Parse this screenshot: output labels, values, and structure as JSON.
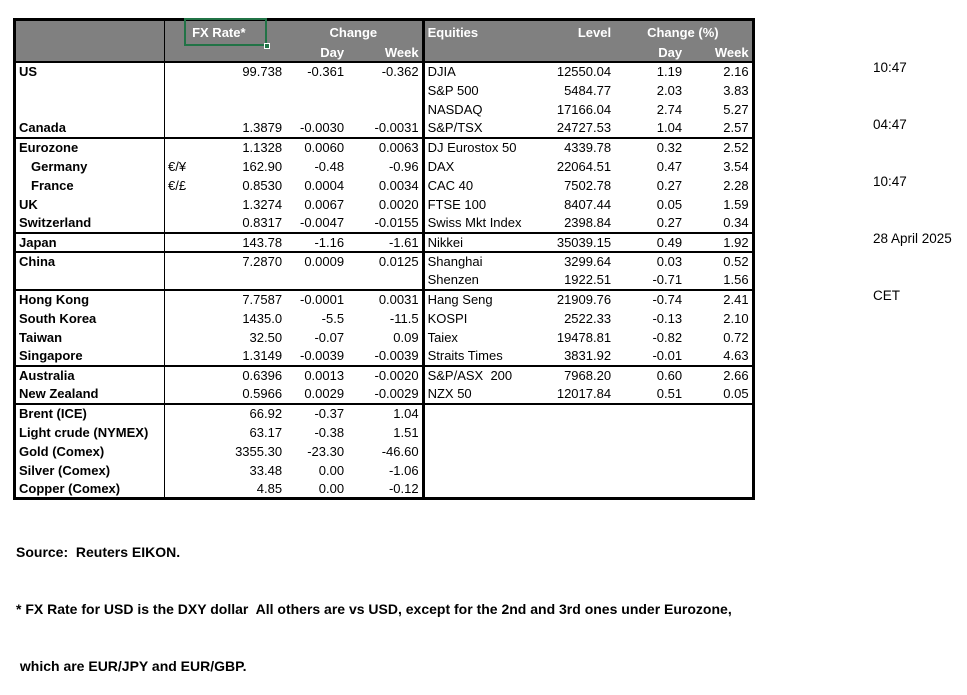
{
  "page": {
    "timestamps": [
      "10:47",
      "04:47",
      "10:47",
      "28 April 2025",
      "CET"
    ]
  },
  "colors": {
    "header_bg": "#808080",
    "header_text": "#ffffff",
    "selection_green": "#217346",
    "border": "#000000",
    "text": "#000000",
    "background": "#ffffff"
  },
  "table": {
    "fx_header": {
      "rate": "FX Rate*",
      "change": "Change",
      "day": "Day",
      "week": "Week"
    },
    "eq_header": {
      "title": "Equities",
      "level": "Level",
      "change": "Change (%)",
      "day": "Day",
      "week": "Week"
    },
    "rows": [
      {
        "label": "US",
        "pair": "",
        "rate": "99.738",
        "day": "-0.361",
        "week": "-0.362",
        "eq": "DJIA",
        "level": "12550.04",
        "eday": "1.19",
        "eweek": "2.16"
      },
      {
        "label": "",
        "pair": "",
        "rate": "",
        "day": "",
        "week": "",
        "eq": "S&P 500",
        "level": "5484.77",
        "eday": "2.03",
        "eweek": "3.83"
      },
      {
        "label": "",
        "pair": "",
        "rate": "",
        "day": "",
        "week": "",
        "eq": "NASDAQ",
        "level": "17166.04",
        "eday": "2.74",
        "eweek": "5.27"
      },
      {
        "label": "Canada",
        "pair": "",
        "rate": "1.3879",
        "day": "-0.0030",
        "week": "-0.0031",
        "eq": "S&P/TSX",
        "level": "24727.53",
        "eday": "1.04",
        "eweek": "2.57"
      },
      {
        "label": "Eurozone",
        "pair": "",
        "rate": "1.1328",
        "day": "0.0060",
        "week": "0.0063",
        "eq": "DJ Eurostox 50",
        "level": "4339.78",
        "eday": "0.32",
        "eweek": "2.52",
        "sep": true
      },
      {
        "label": "Germany",
        "ind": true,
        "pair": "€/¥",
        "rate": "162.90",
        "day": "-0.48",
        "week": "-0.96",
        "eq": "DAX",
        "level": "22064.51",
        "eday": "0.47",
        "eweek": "3.54"
      },
      {
        "label": "France",
        "ind": true,
        "pair": "€/£",
        "rate": "0.8530",
        "day": "0.0004",
        "week": "0.0034",
        "eq": "CAC 40",
        "level": "7502.78",
        "eday": "0.27",
        "eweek": "2.28"
      },
      {
        "label": "UK",
        "pair": "",
        "rate": "1.3274",
        "day": "0.0067",
        "week": "0.0020",
        "eq": "FTSE 100",
        "level": "8407.44",
        "eday": "0.05",
        "eweek": "1.59"
      },
      {
        "label": "Switzerland",
        "pair": "",
        "rate": "0.8317",
        "day": "-0.0047",
        "week": "-0.0155",
        "eq": "Swiss Mkt Index",
        "level": "2398.84",
        "eday": "0.27",
        "eweek": "0.34"
      },
      {
        "label": "Japan",
        "pair": "",
        "rate": "143.78",
        "day": "-1.16",
        "week": "-1.61",
        "eq": "Nikkei",
        "level": "35039.15",
        "eday": "0.49",
        "eweek": "1.92",
        "sep": true
      },
      {
        "label": "China",
        "pair": "",
        "rate": "7.2870",
        "day": "0.0009",
        "week": "0.0125",
        "eq": "Shanghai",
        "level": "3299.64",
        "eday": "0.03",
        "eweek": "0.52",
        "sep": true
      },
      {
        "label": "",
        "pair": "",
        "rate": "",
        "day": "",
        "week": "",
        "eq": "Shenzen",
        "level": "1922.51",
        "eday": "-0.71",
        "eweek": "1.56"
      },
      {
        "label": "Hong Kong",
        "pair": "",
        "rate": "7.7587",
        "day": "-0.0001",
        "week": "0.0031",
        "eq": "Hang Seng",
        "level": "21909.76",
        "eday": "-0.74",
        "eweek": "2.41",
        "sep": true
      },
      {
        "label": "South Korea",
        "pair": "",
        "rate": "1435.0",
        "day": "-5.5",
        "week": "-11.5",
        "eq": "KOSPI",
        "level": "2522.33",
        "eday": "-0.13",
        "eweek": "2.10"
      },
      {
        "label": "Taiwan",
        "pair": "",
        "rate": "32.50",
        "day": "-0.07",
        "week": "0.09",
        "eq": "Taiex",
        "level": "19478.81",
        "eday": "-0.82",
        "eweek": "0.72"
      },
      {
        "label": "Singapore",
        "pair": "",
        "rate": "1.3149",
        "day": "-0.0039",
        "week": "-0.0039",
        "eq": "Straits Times",
        "level": "3831.92",
        "eday": "-0.01",
        "eweek": "4.63"
      },
      {
        "label": "Australia",
        "pair": "",
        "rate": "0.6396",
        "day": "0.0013",
        "week": "-0.0020",
        "eq": "S&P/ASX  200",
        "level": "7968.20",
        "eday": "0.60",
        "eweek": "2.66",
        "sep": true
      },
      {
        "label": "New Zealand",
        "pair": "",
        "rate": "0.5966",
        "day": "0.0029",
        "week": "-0.0029",
        "eq": "NZX 50",
        "level": "12017.84",
        "eday": "0.51",
        "eweek": "0.05"
      },
      {
        "label": "Brent (ICE)",
        "pair": "",
        "rate": "66.92",
        "day": "-0.37",
        "week": "1.04",
        "eq": "",
        "level": "",
        "eday": "",
        "eweek": "",
        "sep": true
      },
      {
        "label": "Light crude (NYMEX)",
        "pair": "",
        "rate": "63.17",
        "day": "-0.38",
        "week": "1.51",
        "eq": "",
        "level": "",
        "eday": "",
        "eweek": ""
      },
      {
        "label": "Gold (Comex)",
        "pair": "",
        "rate": "3355.30",
        "day": "-23.30",
        "week": "-46.60",
        "eq": "",
        "level": "",
        "eday": "",
        "eweek": ""
      },
      {
        "label": "Silver (Comex)",
        "pair": "",
        "rate": "33.48",
        "day": "0.00",
        "week": "-1.06",
        "eq": "",
        "level": "",
        "eday": "",
        "eweek": ""
      },
      {
        "label": "Copper (Comex)",
        "pair": "",
        "rate": "4.85",
        "day": "0.00",
        "week": "-0.12",
        "eq": "",
        "level": "",
        "eday": "",
        "eweek": ""
      }
    ]
  },
  "footer": {
    "source": "Source:  Reuters EIKON.",
    "note1": "* FX Rate for USD is the DXY dollar  All others are vs USD, except for the 2nd and 3rd ones under Eurozone,",
    "note2": " which are EUR/JPY and EUR/GBP."
  }
}
